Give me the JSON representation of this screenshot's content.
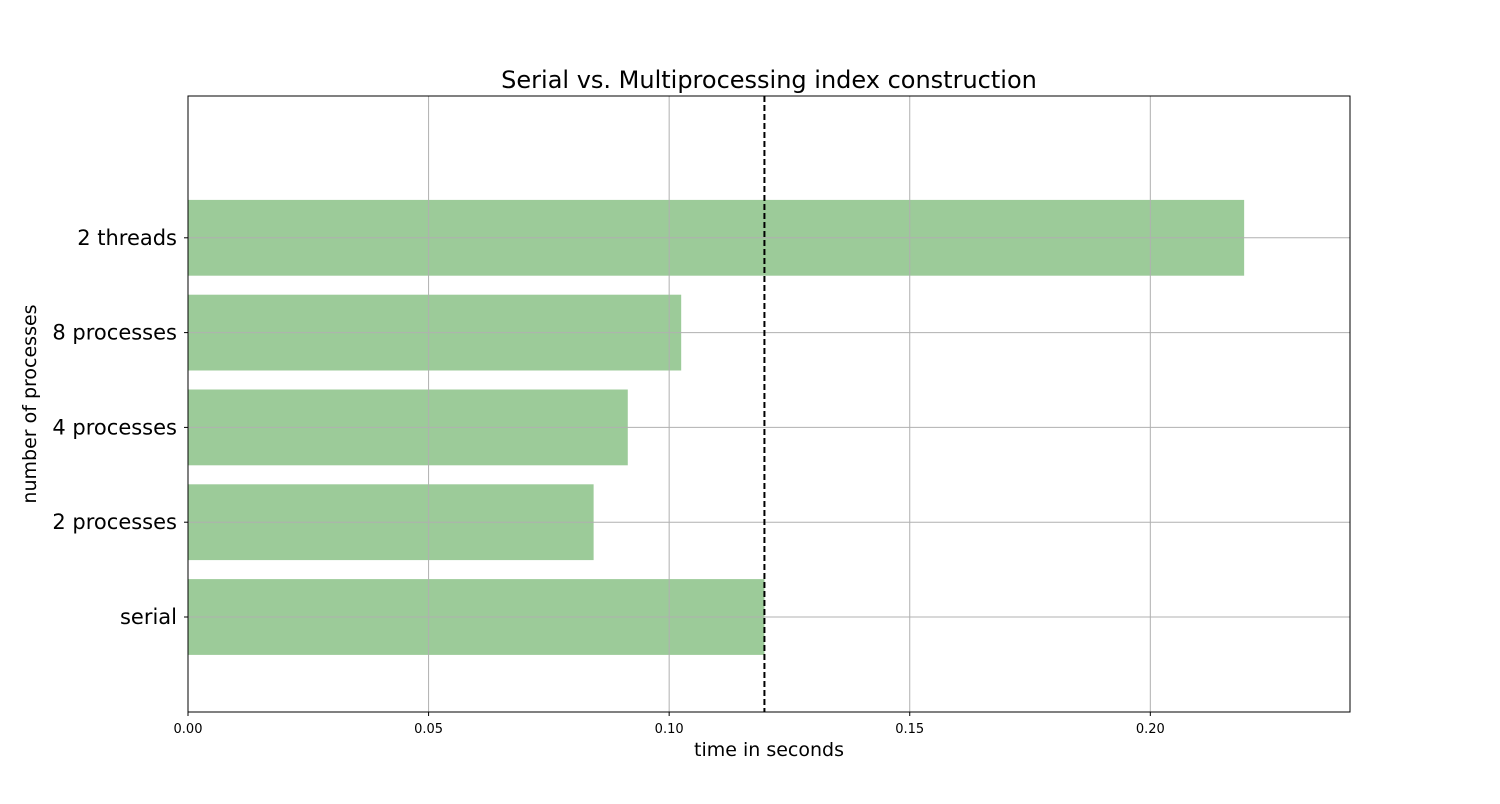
{
  "chart_data": {
    "type": "bar",
    "orientation": "horizontal",
    "title": "Serial vs. Multiprocessing index construction",
    "xlabel": "time in seconds",
    "ylabel": "number of processes",
    "categories": [
      "serial",
      "2 processes",
      "4 processes",
      "8 processes",
      "2 threads"
    ],
    "values": [
      0.1198,
      0.0843,
      0.0914,
      0.1025,
      0.2195
    ],
    "xlim": [
      0.0,
      0.2415
    ],
    "xticks": [
      0.0,
      0.05,
      0.1,
      0.15,
      0.2
    ],
    "xtick_labels": [
      "0.00",
      "0.05",
      "0.10",
      "0.15",
      "0.20"
    ],
    "reference_line": {
      "x": 0.1198,
      "style": "dashed",
      "color": "#000000"
    },
    "grid": true,
    "bar_color": "#9ccb99"
  }
}
